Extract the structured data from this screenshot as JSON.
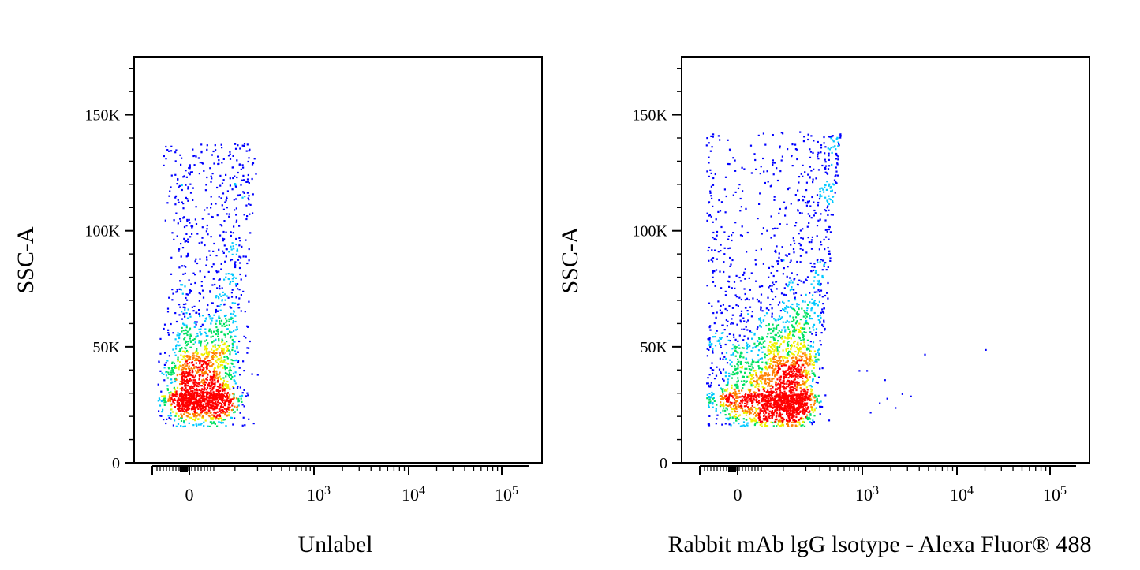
{
  "chart_data": [
    {
      "type": "scatter",
      "xlabel": "Unlabel",
      "ylabel": "SSC-A",
      "x_scale": "biexponential",
      "y_ticks": [
        {
          "label": "0",
          "value": 0
        },
        {
          "label": "50K",
          "value": 50000
        },
        {
          "label": "100K",
          "value": 100000
        },
        {
          "label": "150K",
          "value": 150000
        }
      ],
      "x_ticks": [
        {
          "label": "0",
          "value": 0
        },
        {
          "label": "10",
          "sup": "3",
          "value": 1000
        },
        {
          "label": "10",
          "sup": "4",
          "value": 10000
        },
        {
          "label": "10",
          "sup": "5",
          "value": 100000
        }
      ],
      "ylim": [
        0,
        175000
      ],
      "population": {
        "core_x": 20,
        "core_y": 30000,
        "spread_x": 45,
        "spread_y_low": 6000,
        "spread_y_high": 17000,
        "tail_x_max": 250,
        "tail_y_max": 138000,
        "outliers": []
      }
    },
    {
      "type": "scatter",
      "xlabel": "Rabbit mAb lgG lsotype - Alexa Fluor® 488",
      "ylabel": "SSC-A",
      "x_scale": "biexponential",
      "y_ticks": [
        {
          "label": "0",
          "value": 0
        },
        {
          "label": "50K",
          "value": 50000
        },
        {
          "label": "100K",
          "value": 100000
        },
        {
          "label": "150K",
          "value": 150000
        }
      ],
      "x_ticks": [
        {
          "label": "0",
          "value": 0
        },
        {
          "label": "10",
          "sup": "3",
          "value": 1000
        },
        {
          "label": "10",
          "sup": "4",
          "value": 10000
        },
        {
          "label": "10",
          "sup": "5",
          "value": 100000
        }
      ],
      "ylim": [
        0,
        175000
      ],
      "population": {
        "core_x": 80,
        "core_y": 30000,
        "spread_x": 80,
        "spread_y_low": 7000,
        "spread_y_high": 20000,
        "tail_x_max": 700,
        "tail_y_max": 143000,
        "outliers": [
          {
            "x": 900,
            "y": 40000
          },
          {
            "x": 1200,
            "y": 22000
          },
          {
            "x": 1500,
            "y": 26000
          },
          {
            "x": 1800,
            "y": 28000
          },
          {
            "x": 2200,
            "y": 24000
          },
          {
            "x": 2600,
            "y": 30000
          },
          {
            "x": 3200,
            "y": 29000
          },
          {
            "x": 4500,
            "y": 47000
          },
          {
            "x": 20000,
            "y": 49000
          },
          {
            "x": 1100,
            "y": 40000
          },
          {
            "x": 1700,
            "y": 36000
          }
        ]
      }
    }
  ],
  "colors": {
    "density_low": "#0000ff",
    "density_mid_low": "#00c8ff",
    "density_mid": "#00e060",
    "density_mid_high": "#f0f000",
    "density_high": "#ff8000",
    "density_peak": "#ff0000"
  }
}
